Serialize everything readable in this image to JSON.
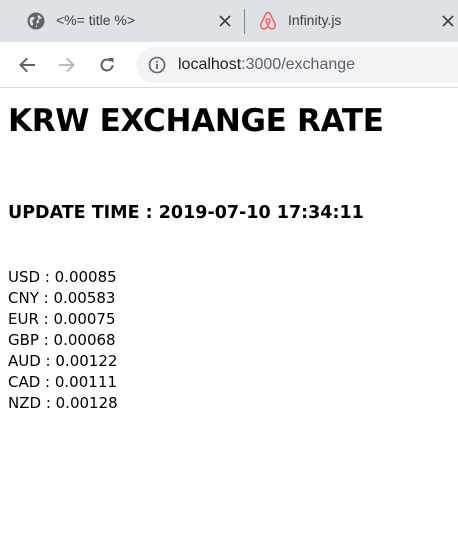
{
  "tabs": [
    {
      "title": "<%= title %>",
      "icon": "globe-icon",
      "active": true
    },
    {
      "title": "Infinity.js",
      "icon": "airbnb-logo-icon",
      "active": false
    }
  ],
  "address_bar": {
    "host": "localhost",
    "path": ":3000/exchange"
  },
  "page": {
    "title": "KRW EXCHANGE RATE",
    "update_time": "UPDATE TIME : 2019-07-10 17:34:11",
    "rates": [
      "USD : 0.00085",
      "CNY : 0.00583",
      "EUR : 0.00075",
      "GBP : 0.00068",
      "AUD : 0.00122",
      "CAD : 0.00111",
      "NZD : 0.00128"
    ]
  },
  "colors": {
    "tabstrip": "#dee1e6",
    "omnibox": "#f1f3f4",
    "airbnb_logo": "#ff5a5f"
  }
}
